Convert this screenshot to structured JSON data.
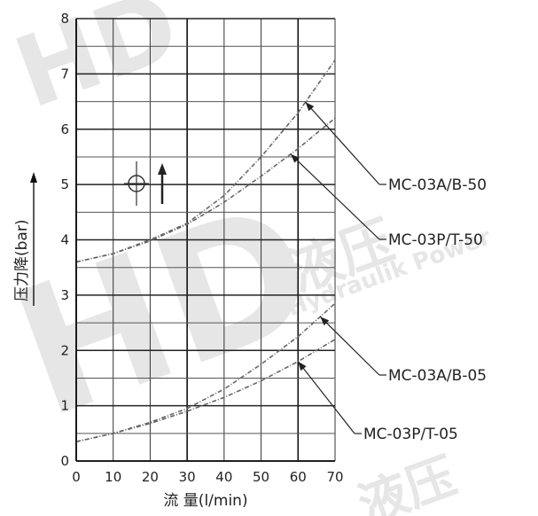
{
  "chart_data": {
    "type": "line",
    "title": "",
    "xlabel": "流 量(l/min)",
    "ylabel": "压力降(bar)",
    "xlim": [
      0,
      70
    ],
    "ylim": [
      0,
      8
    ],
    "x_ticks": [
      "0",
      "10",
      "20",
      "30",
      "40",
      "50",
      "60",
      "70"
    ],
    "y_ticks": [
      "0",
      "1",
      "2",
      "3",
      "4",
      "5",
      "6",
      "7",
      "8"
    ],
    "grid": true,
    "series": [
      {
        "name": "MC-03A/B-50",
        "x": [
          0,
          10,
          20,
          30,
          40,
          50,
          60,
          70
        ],
        "y": [
          3.6,
          3.75,
          4.0,
          4.3,
          4.8,
          5.5,
          6.3,
          7.25
        ]
      },
      {
        "name": "MC-03P/T-50",
        "x": [
          0,
          10,
          20,
          30,
          40,
          50,
          60,
          70
        ],
        "y": [
          3.6,
          3.75,
          3.98,
          4.28,
          4.68,
          5.15,
          5.65,
          6.2
        ]
      },
      {
        "name": "MC-03A/B-05",
        "x": [
          0,
          10,
          20,
          30,
          40,
          50,
          60,
          70
        ],
        "y": [
          0.35,
          0.5,
          0.7,
          0.95,
          1.3,
          1.75,
          2.25,
          2.85
        ]
      },
      {
        "name": "MC-03P/T-05",
        "x": [
          0,
          10,
          20,
          30,
          40,
          50,
          60,
          70
        ],
        "y": [
          0.35,
          0.5,
          0.68,
          0.9,
          1.15,
          1.45,
          1.8,
          2.2
        ]
      }
    ],
    "callouts": [
      {
        "label": "MC-03A/B-50",
        "series": "MC-03A/B-50",
        "at_x": 62
      },
      {
        "label": "MC-03P/T-50",
        "series": "MC-03P/T-50",
        "at_x": 58
      },
      {
        "label": "MC-03A/B-05",
        "series": "MC-03A/B-05",
        "at_x": 66
      },
      {
        "label": "MC-03P/T-05",
        "series": "MC-03P/T-05",
        "at_x": 60
      }
    ],
    "watermark": {
      "brand": "HD",
      "cn": "液压",
      "en": "Hydraulik Power"
    }
  }
}
